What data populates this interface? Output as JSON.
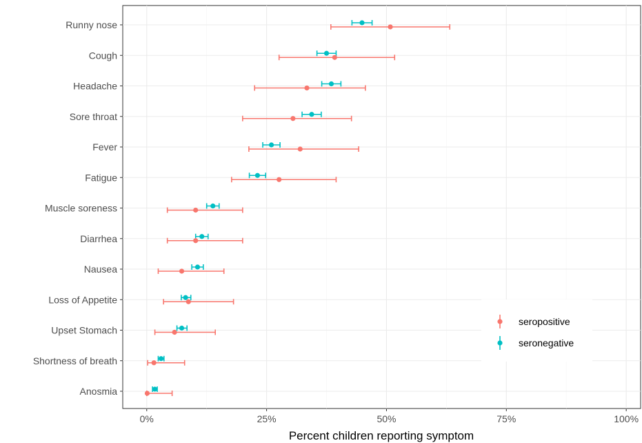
{
  "chart_data": {
    "type": "scatter",
    "subtype": "dot-errorbar",
    "title": "",
    "xlabel": "Percent children reporting symptom",
    "ylabel": "",
    "xlim": [
      -5,
      103
    ],
    "x_ticks": [
      0,
      25,
      50,
      75,
      100
    ],
    "x_tick_labels": [
      "0%",
      "25%",
      "50%",
      "75%",
      "100%"
    ],
    "grid": true,
    "legend_position": "bottom-right",
    "categories": [
      "Runny nose",
      "Cough",
      "Headache",
      "Sore throat",
      "Fever",
      "Fatigue",
      "Muscle soreness",
      "Diarrhea",
      "Nausea",
      "Loss of Appetite",
      "Upset Stomach",
      "Shortness of breath",
      "Anosmia"
    ],
    "series": [
      {
        "name": "seropositive",
        "color": "#F8766D",
        "values": [
          50.8,
          39.2,
          33.4,
          30.5,
          32.0,
          27.6,
          10.2,
          10.2,
          7.3,
          8.7,
          5.8,
          1.5,
          0.1
        ],
        "lower": [
          38.4,
          27.6,
          22.5,
          20.0,
          21.3,
          17.7,
          4.3,
          4.3,
          2.4,
          3.5,
          1.7,
          0.2,
          0.0
        ],
        "upper": [
          63.2,
          51.7,
          45.6,
          42.7,
          44.2,
          39.5,
          20.0,
          20.0,
          16.1,
          18.1,
          14.3,
          7.9,
          5.3
        ]
      },
      {
        "name": "seronegative",
        "color": "#00BFC4",
        "values": [
          44.9,
          37.5,
          38.5,
          34.4,
          26.0,
          23.1,
          13.8,
          11.5,
          10.6,
          8.1,
          7.3,
          3.0,
          1.7
        ],
        "lower": [
          42.8,
          35.5,
          36.5,
          32.4,
          24.2,
          21.4,
          12.5,
          10.2,
          9.4,
          7.2,
          6.3,
          2.4,
          1.2
        ],
        "upper": [
          47.0,
          39.5,
          40.5,
          36.4,
          27.8,
          24.8,
          15.1,
          12.8,
          11.8,
          9.2,
          8.4,
          3.6,
          2.2
        ]
      }
    ]
  }
}
